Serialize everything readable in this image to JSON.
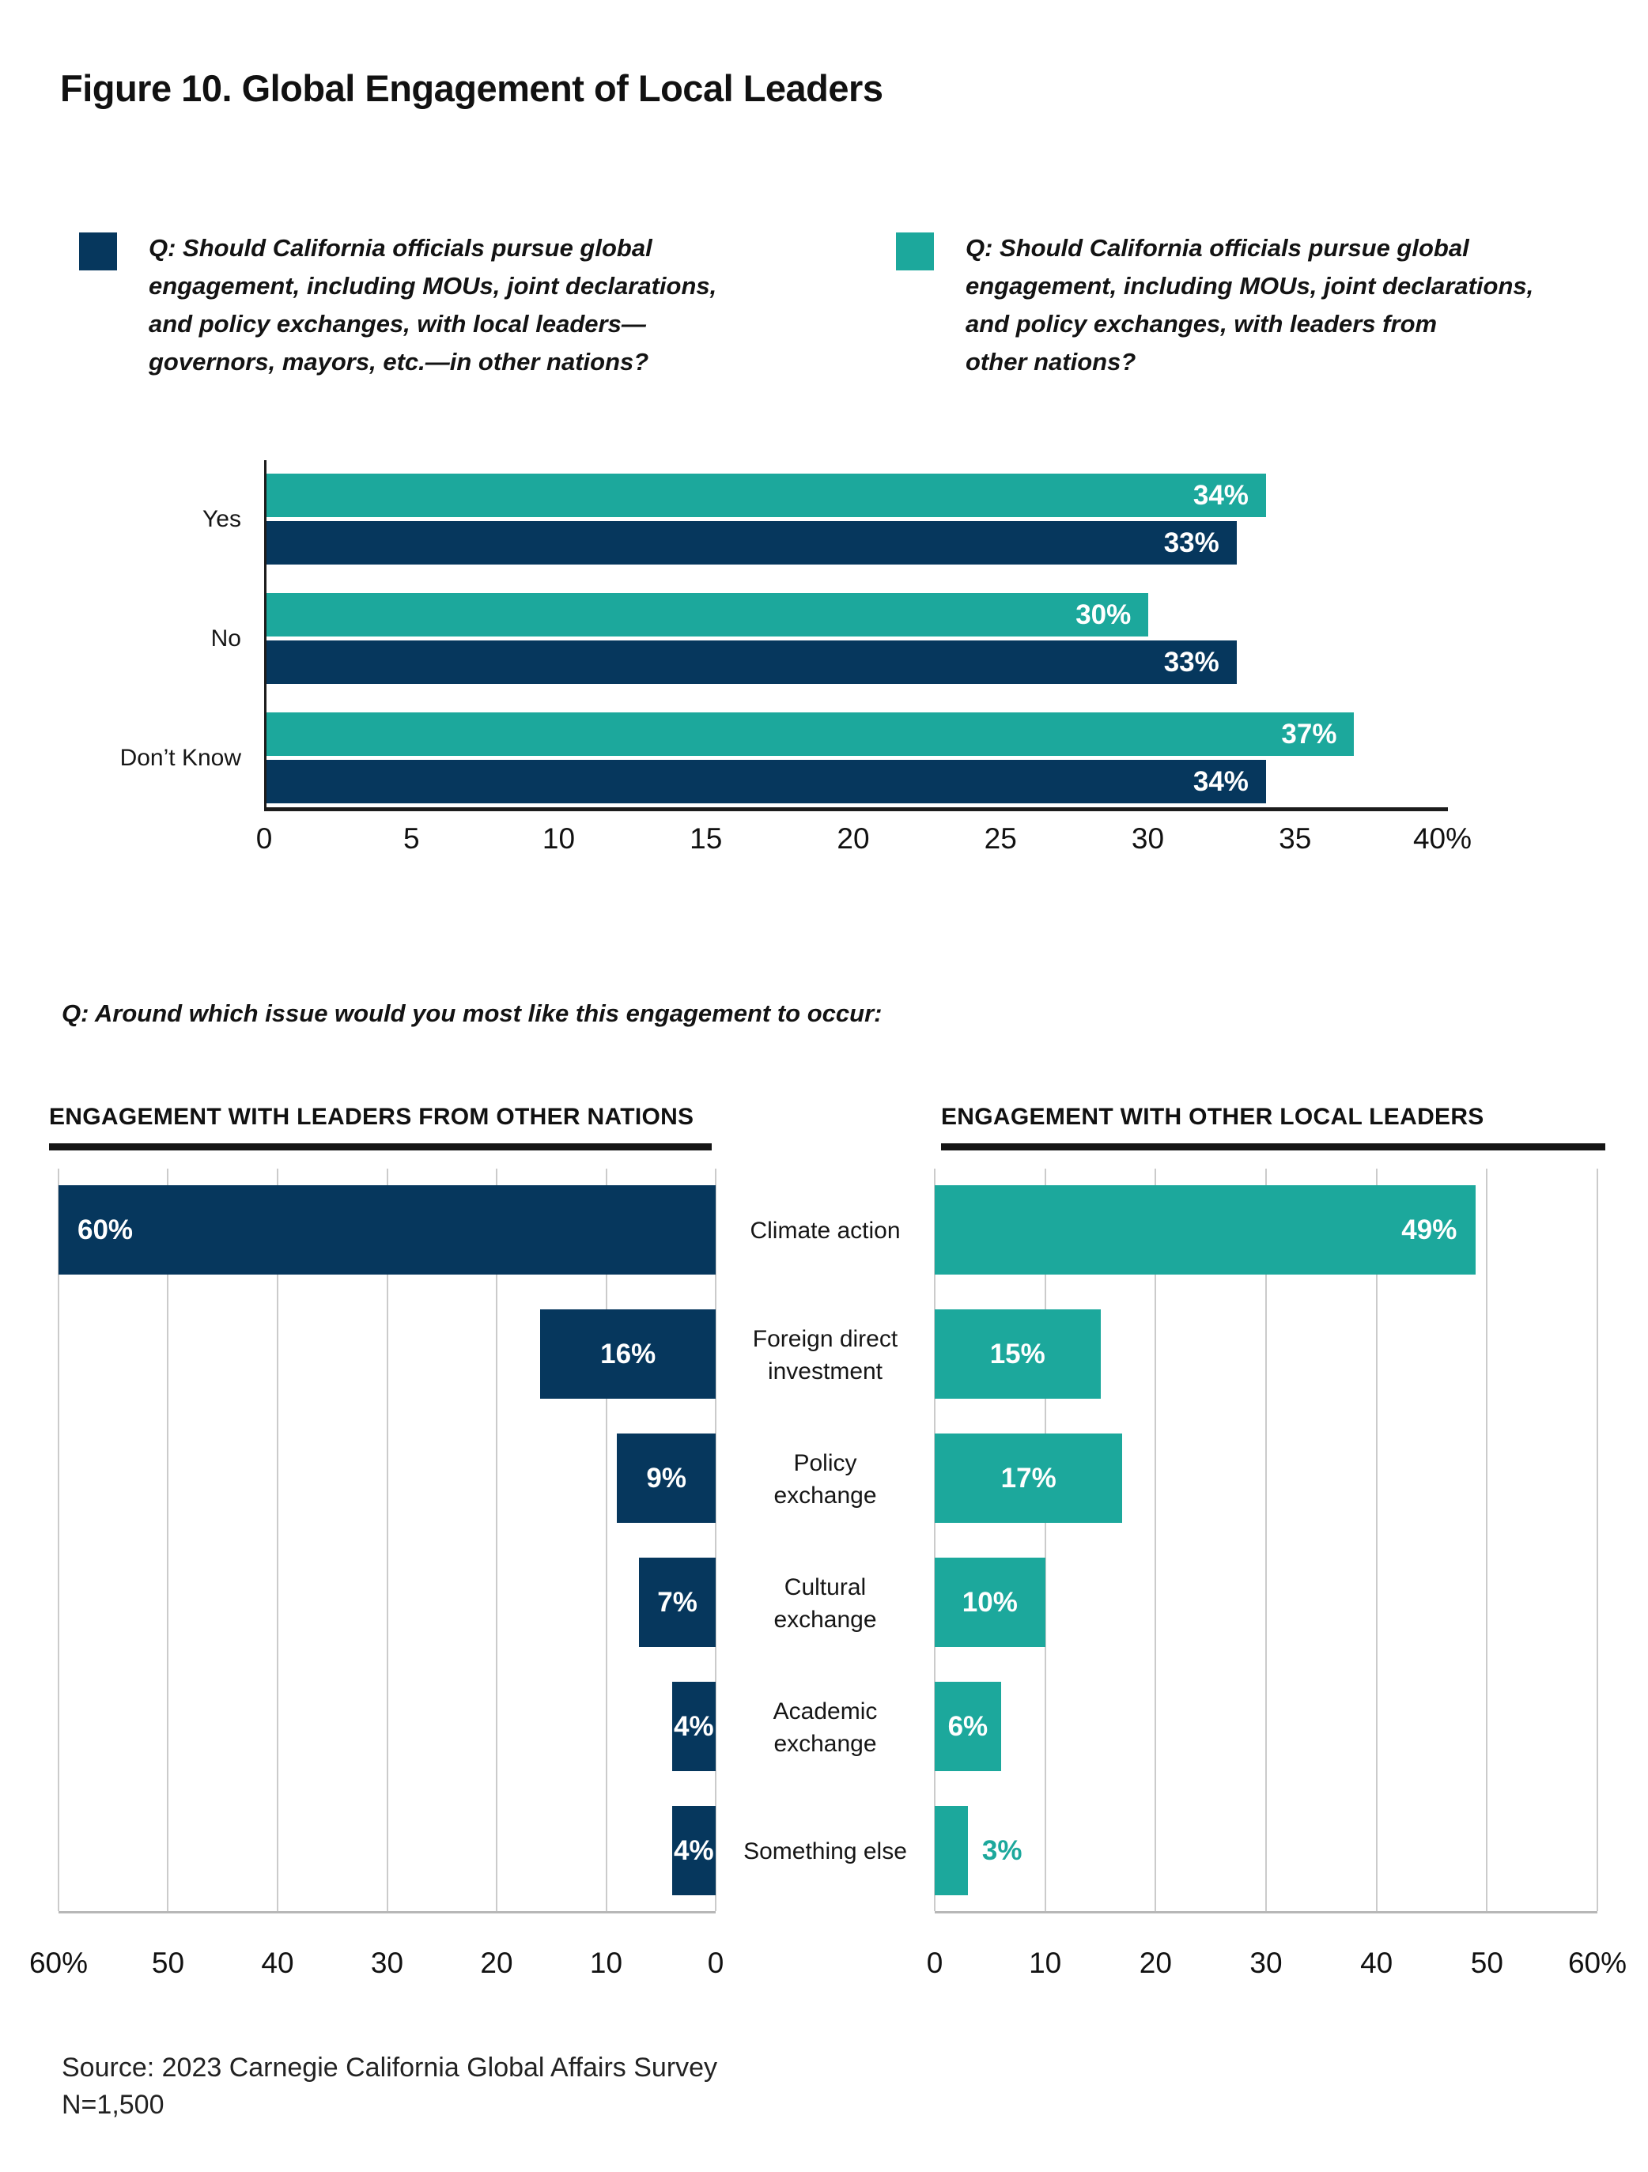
{
  "title": "Figure 10. Global Engagement of Local Leaders",
  "colors": {
    "navy": "#06375D",
    "teal": "#1CA89C"
  },
  "legend": [
    {
      "swatch": "navy",
      "text": "Q: Should California officials pursue global\nengagement, including MOUs, joint declarations,\nand policy exchanges, with local leaders—\ngovernors, mayors, etc.—in other nations?"
    },
    {
      "swatch": "teal",
      "text": "Q: Should California officials pursue global\nengagement, including MOUs, joint declarations,\nand policy exchanges, with leaders from\nother nations?"
    }
  ],
  "question2": "Q: Around which issue would you most like this engagement to occur:",
  "center_labels": [
    "Climate action",
    "Foreign direct\ninvestment",
    "Policy\nexchange",
    "Cultural\nexchange",
    "Academic\nexchange",
    "Something else"
  ],
  "source": {
    "line1": "Source: 2023 Carnegie California Global Affairs Survey",
    "line2": "N=1,500"
  },
  "chart_data": [
    {
      "name": "support-for-global-engagement",
      "type": "bar",
      "orientation": "horizontal",
      "categories": [
        "Yes",
        "No",
        "Don’t Know"
      ],
      "series": [
        {
          "name": "with leaders from other nations",
          "color": "teal",
          "values": [
            34,
            30,
            37
          ]
        },
        {
          "name": "with local leaders in other nations",
          "color": "navy",
          "values": [
            33,
            33,
            34
          ]
        }
      ],
      "xlim": [
        0,
        40
      ],
      "ticks": [
        "0",
        "5",
        "10",
        "15",
        "20",
        "25",
        "30",
        "35",
        "40%"
      ],
      "value_suffix": "%",
      "grid": false,
      "legend_position": "top"
    },
    {
      "name": "engagement-with-leaders-from-other-nations",
      "title": "ENGAGEMENT WITH LEADERS FROM OTHER NATIONS",
      "type": "bar",
      "orientation": "horizontal-mirrored",
      "color": "navy",
      "categories": [
        "Climate action",
        "Foreign direct investment",
        "Policy exchange",
        "Cultural exchange",
        "Academic exchange",
        "Something else"
      ],
      "values": [
        60,
        16,
        9,
        7,
        4,
        4
      ],
      "xlim": [
        0,
        60
      ],
      "ticks": [
        "60%",
        "50",
        "40",
        "30",
        "20",
        "10",
        "0"
      ],
      "value_suffix": "%",
      "grid": true
    },
    {
      "name": "engagement-with-other-local-leaders",
      "title": "ENGAGEMENT WITH OTHER LOCAL LEADERS",
      "type": "bar",
      "orientation": "horizontal",
      "color": "teal",
      "categories": [
        "Climate action",
        "Foreign direct investment",
        "Policy exchange",
        "Cultural exchange",
        "Academic exchange",
        "Something else"
      ],
      "values": [
        49,
        15,
        17,
        10,
        6,
        3
      ],
      "xlim": [
        0,
        60
      ],
      "ticks": [
        "0",
        "10",
        "20",
        "30",
        "40",
        "50",
        "60%"
      ],
      "value_suffix": "%",
      "grid": true
    }
  ]
}
